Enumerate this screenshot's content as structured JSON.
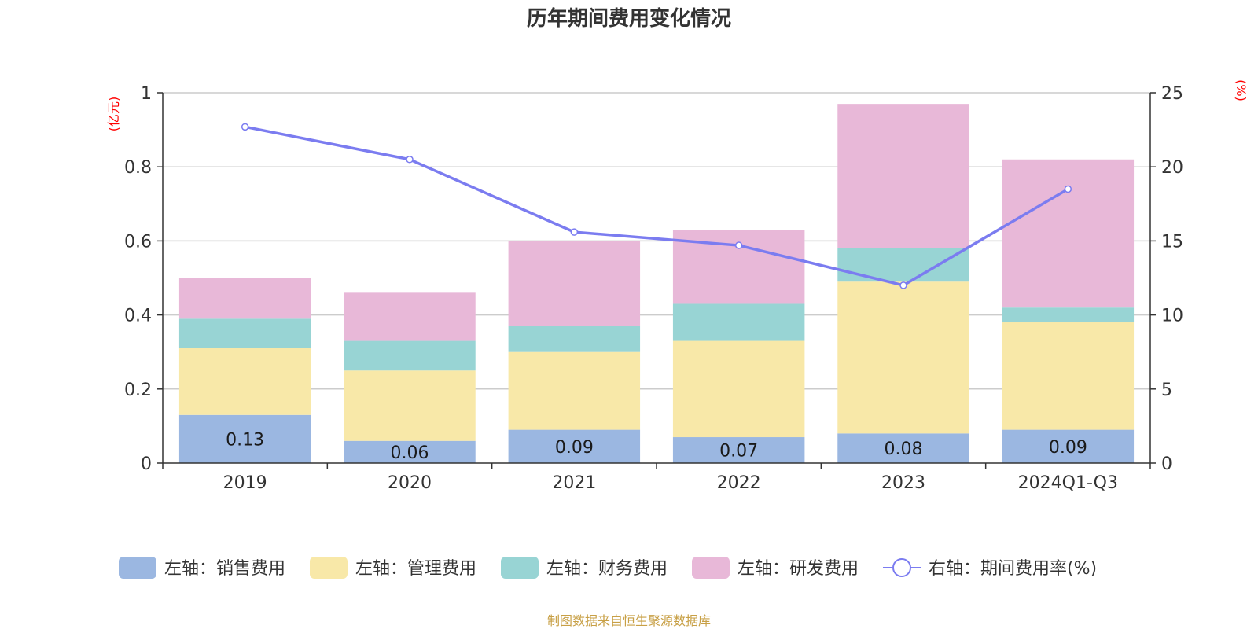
{
  "chart_data": {
    "type": "bar",
    "title": "历年期间费用变化情况",
    "left_unit": "(亿元)",
    "right_unit": "(%)",
    "categories": [
      "2019",
      "2020",
      "2021",
      "2022",
      "2023",
      "2024Q1-Q3"
    ],
    "y_left": {
      "range": [
        0,
        1
      ],
      "ticks": [
        "0",
        "0.2",
        "0.4",
        "0.6",
        "0.8",
        "1"
      ],
      "tick_values": [
        0,
        0.2,
        0.4,
        0.6,
        0.8,
        1
      ]
    },
    "y_right": {
      "range": [
        0,
        25
      ],
      "ticks": [
        "0",
        "5",
        "10",
        "15",
        "20",
        "25"
      ],
      "tick_values": [
        0,
        5,
        10,
        15,
        20,
        25
      ]
    },
    "grid": true,
    "stacked": true,
    "series": [
      {
        "name": "左轴：销售费用",
        "axis": "left",
        "color": "#9bb7e1",
        "values": [
          0.13,
          0.06,
          0.09,
          0.07,
          0.08,
          0.09
        ],
        "labels": [
          "0.13",
          "0.06",
          "0.09",
          "0.07",
          "0.08",
          "0.09"
        ]
      },
      {
        "name": "左轴：管理费用",
        "axis": "left",
        "color": "#f8e8a8",
        "values": [
          0.18,
          0.19,
          0.21,
          0.26,
          0.41,
          0.29
        ]
      },
      {
        "name": "左轴：财务费用",
        "axis": "left",
        "color": "#98d4d4",
        "values": [
          0.08,
          0.08,
          0.07,
          0.1,
          0.09,
          0.04
        ]
      },
      {
        "name": "左轴：研发费用",
        "axis": "left",
        "color": "#e8b8d8",
        "values": [
          0.11,
          0.13,
          0.23,
          0.2,
          0.39,
          0.4
        ]
      },
      {
        "name": "右轴：期间费用率(%)",
        "axis": "right",
        "type": "line",
        "color": "#7b7cf0",
        "values": [
          22.7,
          20.5,
          15.6,
          14.7,
          12.0,
          18.5
        ]
      }
    ],
    "legend_position": "bottom"
  },
  "source_note": "制图数据来自恒生聚源数据库"
}
